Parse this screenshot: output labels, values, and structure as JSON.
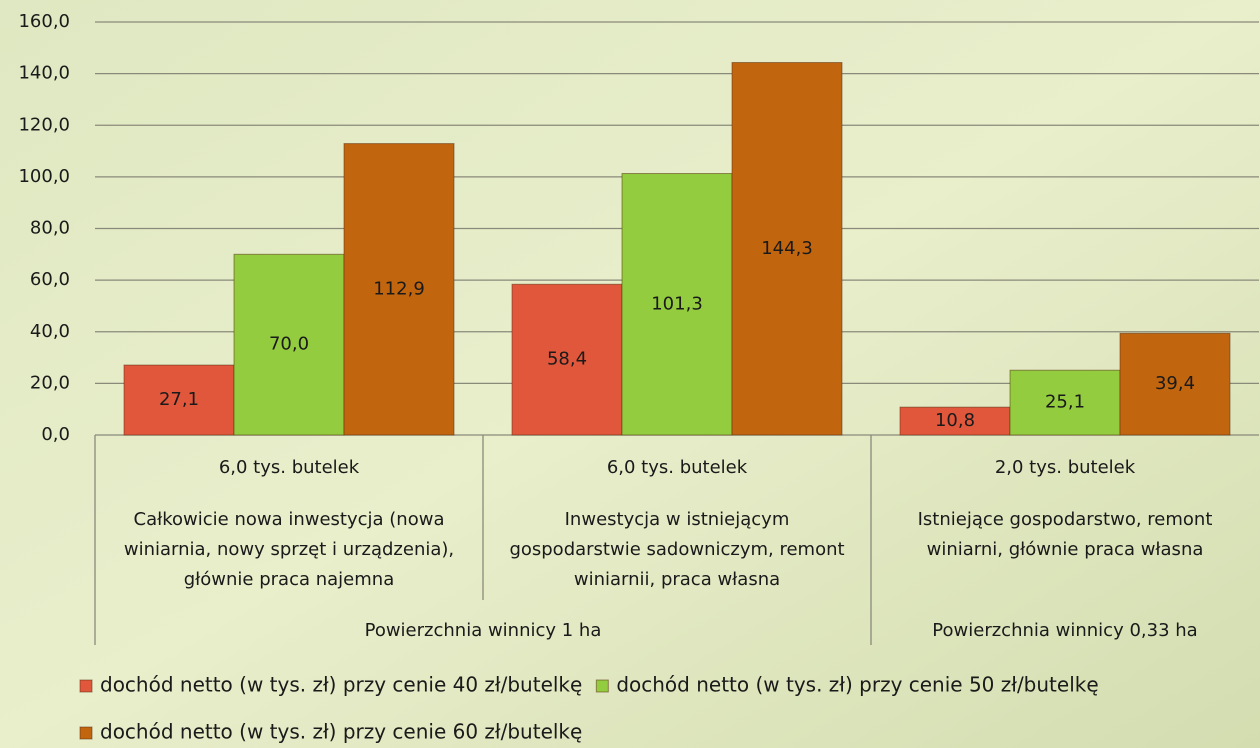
{
  "chart_data": {
    "type": "bar",
    "categories": [
      "6,0 tys. butelek",
      "6,0 tys. butelek",
      "2,0 tys. butelek"
    ],
    "descriptions": [
      [
        "Całkowicie nowa inwestycja (nowa",
        "winiarnia, nowy sprzęt i urządzenia),",
        "głównie praca najemna"
      ],
      [
        "Inwestycja w istniejącym",
        "gospodarstwie sadowniczym, remont",
        "winiarnii, praca własna"
      ],
      [
        "Istniejące gospodarstwo, remont",
        "winiarni, głównie praca własna"
      ]
    ],
    "category_groups": [
      {
        "name": "Powierzchnia winnicy 1 ha",
        "size": 2
      },
      {
        "name": "Powierzchnia winnicy 0,33 ha",
        "size": 1
      }
    ],
    "series": [
      {
        "name": "dochód netto (w tys. zł) przy cenie 40 zł/butelkę",
        "color": "#e0573c",
        "values": [
          27.1,
          58.4,
          10.8
        ],
        "value_labels": [
          "27,1",
          "58,4",
          "10,8"
        ]
      },
      {
        "name": "dochód netto (w tys. zł) przy cenie 50 zł/butelkę",
        "color": "#93cc3e",
        "values": [
          70.0,
          101.3,
          25.1
        ],
        "value_labels": [
          "70,0",
          "101,3",
          "25,1"
        ]
      },
      {
        "name": "dochód netto (w tys. zł) przy cenie 60 zł/butelkę",
        "color": "#c2650f",
        "values": [
          112.9,
          144.3,
          39.4
        ],
        "value_labels": [
          "112,9",
          "144,3",
          "39,4"
        ]
      }
    ],
    "ylim": [
      0,
      160
    ],
    "yticks": [
      {
        "value": 0,
        "label": "0,0"
      },
      {
        "value": 20,
        "label": "20,0"
      },
      {
        "value": 40,
        "label": "40,0"
      },
      {
        "value": 60,
        "label": "60,0"
      },
      {
        "value": 80,
        "label": "80,0"
      },
      {
        "value": 100,
        "label": "100,0"
      },
      {
        "value": 120,
        "label": "120,0"
      },
      {
        "value": 140,
        "label": "140,0"
      },
      {
        "value": 160,
        "label": "160,0"
      }
    ],
    "grid": true
  }
}
